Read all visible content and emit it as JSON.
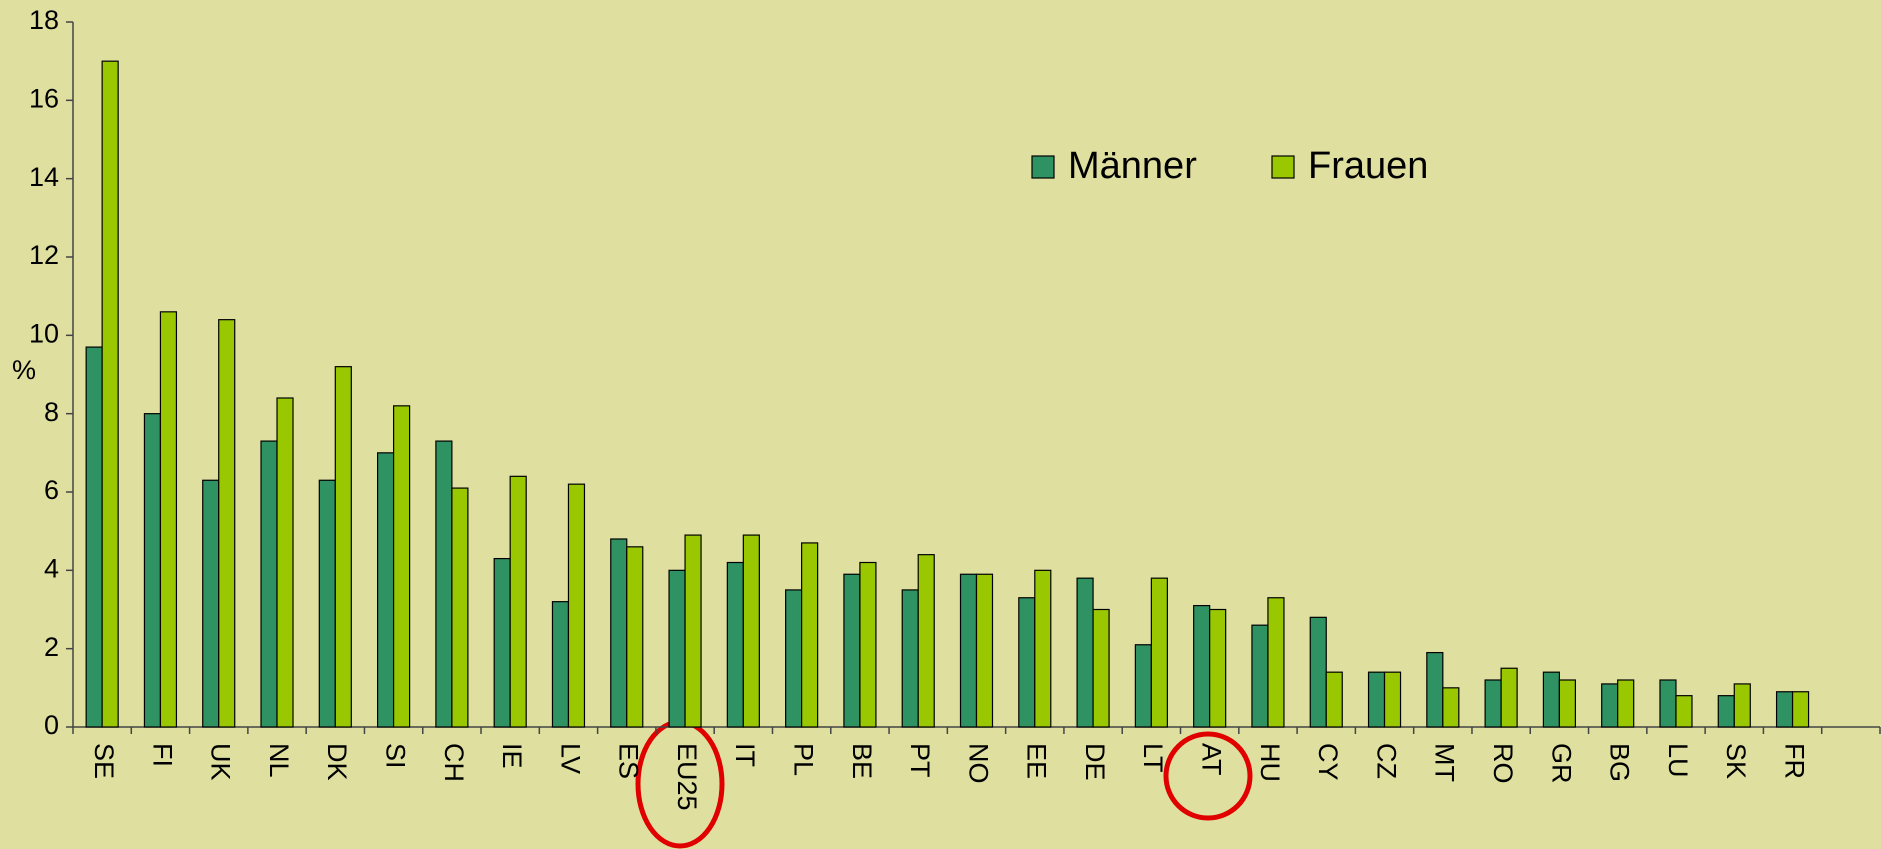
{
  "chart_data": {
    "type": "bar",
    "y_label": "%",
    "categories": [
      "SE",
      "FI",
      "UK",
      "NL",
      "DK",
      "SI",
      "CH",
      "IE",
      "LV",
      "ES",
      "EU25",
      "IT",
      "PL",
      "BE",
      "PT",
      "NO",
      "EE",
      "DE",
      "LT",
      "AT",
      "HU",
      "CY",
      "CZ",
      "MT",
      "RO",
      "GR",
      "BG",
      "LU",
      "SK",
      "FR"
    ],
    "series": [
      {
        "name": "Männer",
        "color": "#2e9262",
        "values": [
          9.7,
          8.0,
          6.3,
          7.3,
          6.3,
          7.0,
          7.3,
          4.3,
          3.2,
          4.8,
          4.0,
          4.2,
          3.5,
          3.9,
          3.5,
          3.9,
          3.3,
          3.8,
          2.1,
          3.1,
          2.6,
          2.8,
          1.4,
          1.9,
          1.2,
          1.4,
          1.1,
          1.2,
          0.8,
          0.9
        ]
      },
      {
        "name": "Frauen",
        "color": "#99c800",
        "values": [
          17.0,
          10.6,
          10.4,
          8.4,
          9.2,
          8.2,
          6.1,
          6.4,
          6.2,
          4.6,
          4.9,
          4.9,
          4.7,
          4.2,
          4.4,
          3.9,
          4.0,
          3.0,
          3.8,
          3.0,
          3.3,
          1.4,
          1.4,
          1.0,
          1.5,
          1.2,
          1.2,
          0.8,
          1.1,
          0.9
        ]
      }
    ],
    "ylim": [
      0,
      18
    ],
    "yticks": [
      0,
      2,
      4,
      6,
      8,
      10,
      12,
      14,
      16,
      18
    ],
    "legend": "top-center"
  }
}
